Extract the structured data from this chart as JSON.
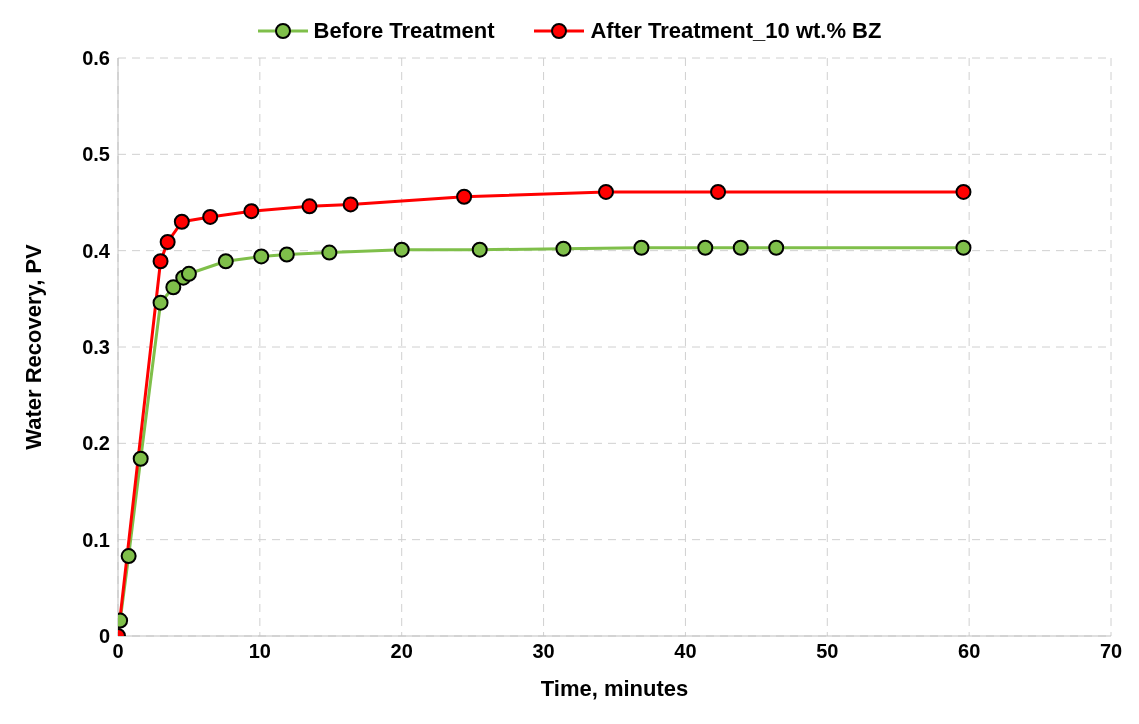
{
  "chart_data": {
    "type": "line",
    "xlabel": "Time, minutes",
    "ylabel": "Water Recovery, PV",
    "xlim": [
      0,
      70
    ],
    "xticks": [
      0,
      10,
      20,
      30,
      40,
      50,
      60,
      70
    ],
    "ylim": [
      0,
      0.6
    ],
    "yticks": [
      0,
      0.1,
      0.2,
      0.3,
      0.4,
      0.5,
      0.6
    ],
    "grid": true,
    "legend": "top",
    "marker": "circle",
    "series": [
      {
        "name": "Before Treatment",
        "color": "#7fbf4a",
        "x": [
          0.15,
          0.75,
          1.6,
          3.0,
          3.9,
          4.6,
          5.0,
          7.6,
          10.1,
          11.9,
          14.9,
          20,
          25.5,
          31.4,
          36.9,
          41.4,
          43.9,
          46.4,
          59.6
        ],
        "values": [
          0.016,
          0.083,
          0.184,
          0.346,
          0.362,
          0.372,
          0.376,
          0.389,
          0.394,
          0.396,
          0.398,
          0.401,
          0.401,
          0.402,
          0.403,
          0.403,
          0.403,
          0.403,
          0.403
        ]
      },
      {
        "name": "After Treatment_10 wt.% BZ",
        "color": "#ff0000",
        "x": [
          0,
          3.0,
          3.5,
          4.5,
          6.5,
          9.4,
          13.5,
          16.4,
          24.4,
          34.4,
          42.3,
          59.6
        ],
        "values": [
          0,
          0.389,
          0.409,
          0.43,
          0.435,
          0.441,
          0.446,
          0.448,
          0.456,
          0.461,
          0.461,
          0.461
        ]
      }
    ]
  }
}
